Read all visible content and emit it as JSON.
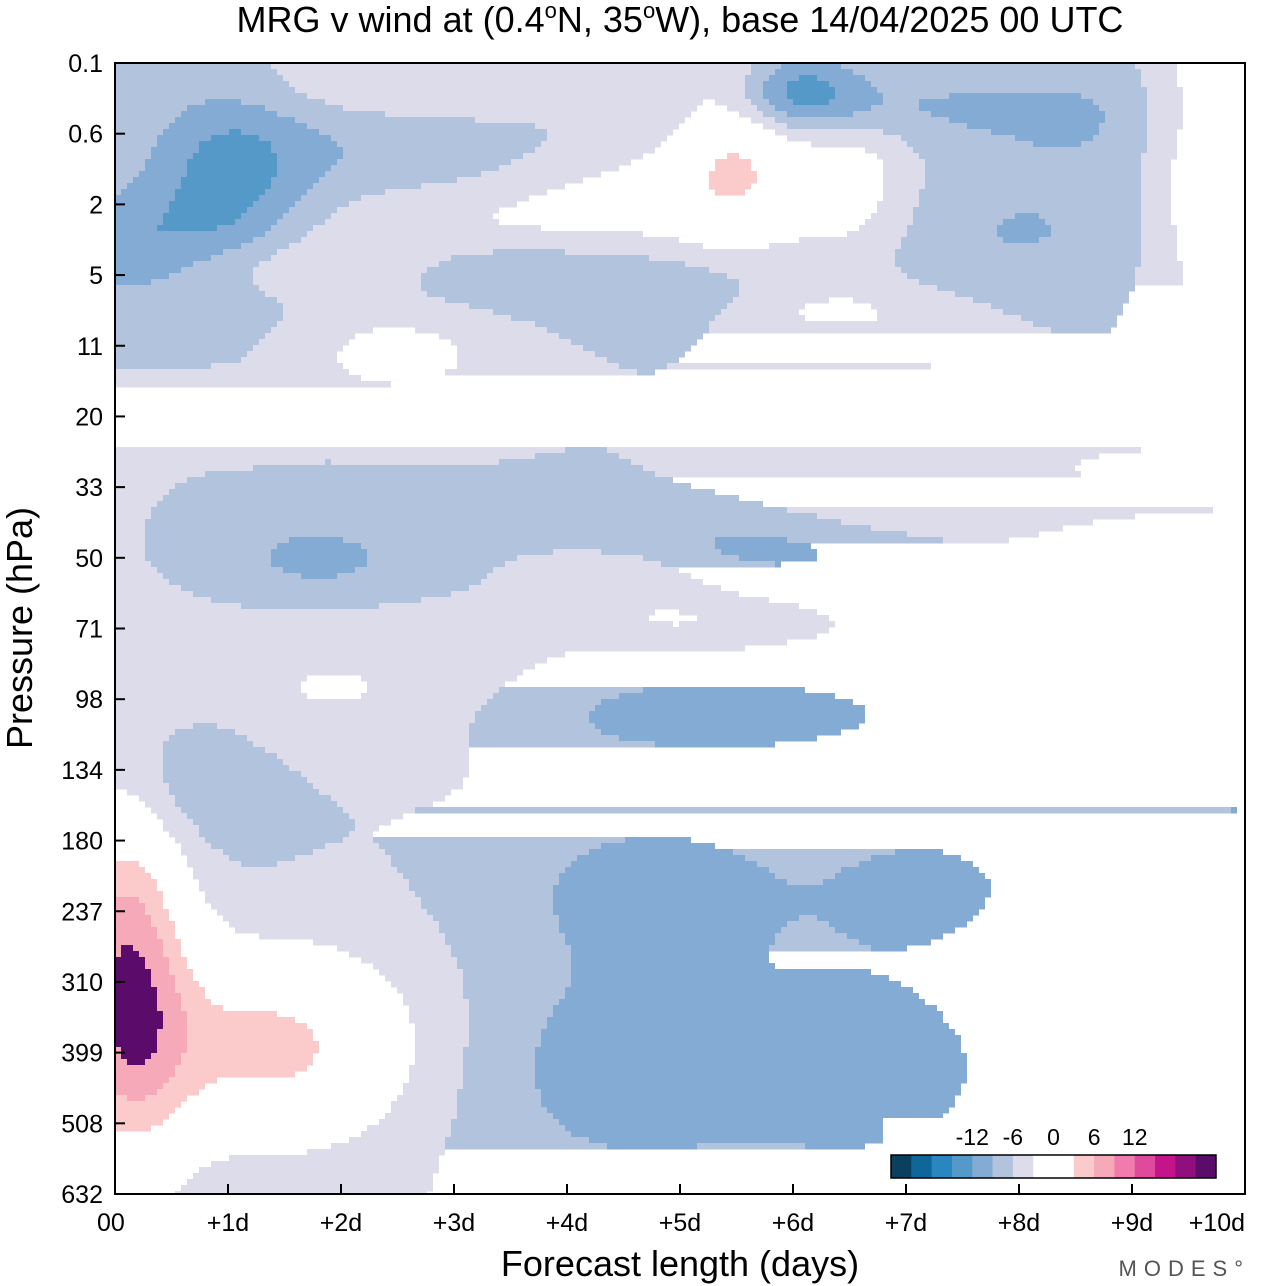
{
  "chart_data": {
    "type": "heatmap",
    "title": "MRG v wind at (0.4°N, 35°W),  base 14/04/2025  00 UTC",
    "title_parts": {
      "prefix": "MRG v wind at (0.4",
      "deg1": "o",
      "mid": "N, 35",
      "deg2": "o",
      "suffix": "W),  base 14/04/2025  00 UTC"
    },
    "xlabel": "Forecast length (days)",
    "ylabel": "Pressure (hPa)",
    "x_ticks": [
      "00",
      "+1d",
      "+2d",
      "+3d",
      "+4d",
      "+5d",
      "+6d",
      "+7d",
      "+8d",
      "+9d",
      "+10d"
    ],
    "y_ticks": [
      "0.1",
      "0.6",
      "2",
      "5",
      "11",
      "20",
      "33",
      "50",
      "71",
      "98",
      "134",
      "180",
      "237",
      "310",
      "399",
      "508",
      "632"
    ],
    "xlim": [
      0,
      10
    ],
    "ylim": [
      0.1,
      632
    ],
    "colorbar": {
      "tick_labels": [
        "-12",
        "-6",
        "0",
        "6",
        "12"
      ],
      "levels": [
        -15,
        -12,
        -9,
        -6,
        -3,
        0,
        3,
        6,
        9,
        12,
        15
      ],
      "colors": [
        "#0a3f5f",
        "#0f6699",
        "#2a86be",
        "#5599c9",
        "#84abd4",
        "#b2c3dd",
        "#dcdcea",
        "#ffffff",
        "#ffffff",
        "#fbcaca",
        "#f6a9b8",
        "#f07bac",
        "#e04a9c",
        "#c5138c",
        "#8e0f7d",
        "#5b0c6b"
      ]
    },
    "anomalies": [
      {
        "day": 0.1,
        "p": 300,
        "v": 14,
        "sd": 0.4,
        "sp": 0.9
      },
      {
        "day": 1.4,
        "p": 390,
        "v": 10,
        "sd": 0.9,
        "sp": 0.45
      },
      {
        "day": 4.5,
        "p": 420,
        "v": -4.5,
        "sd": 1.0,
        "sp": 0.55
      },
      {
        "day": 6.7,
        "p": 420,
        "v": -4.5,
        "sd": 0.9,
        "sp": 0.5
      },
      {
        "day": 4.8,
        "p": 215,
        "v": -4.3,
        "sd": 0.9,
        "sp": 0.35
      },
      {
        "day": 7.2,
        "p": 215,
        "v": -3.8,
        "sd": 0.7,
        "sp": 0.3
      },
      {
        "day": 9.9,
        "p": 160,
        "v": -3,
        "sd": 0.5,
        "sp": 0.8
      },
      {
        "day": 0.5,
        "p": 140,
        "v": -4,
        "sd": 0.6,
        "sp": 0.35
      },
      {
        "day": 2.0,
        "p": 95,
        "v": 3.5,
        "sd": 1.1,
        "sp": 0.3
      },
      {
        "day": 5.3,
        "p": 105,
        "v": -4.5,
        "sd": 1.5,
        "sp": 0.22
      },
      {
        "day": 1.8,
        "p": 50,
        "v": -4,
        "sd": 0.6,
        "sp": 0.18
      },
      {
        "day": 5.8,
        "p": 46,
        "v": -4,
        "sd": 1.0,
        "sp": 0.2
      },
      {
        "day": 9.3,
        "p": 48,
        "v": -3,
        "sd": 0.8,
        "sp": 0.15
      },
      {
        "day": 7.0,
        "p": 37,
        "v": 3.5,
        "sd": 1.1,
        "sp": 0.16
      },
      {
        "day": 9.0,
        "p": 28,
        "v": 3.2,
        "sd": 0.8,
        "sp": 0.15
      },
      {
        "day": 5.0,
        "p": 68,
        "v": 3.2,
        "sd": 0.6,
        "sp": 0.12
      },
      {
        "day": 4.5,
        "p": 55,
        "v": 3.2,
        "sd": 0.5,
        "sp": 0.12
      },
      {
        "day": 2.5,
        "p": 12,
        "v": 4.5,
        "sd": 0.6,
        "sp": 0.2
      },
      {
        "day": 0.7,
        "p": 19,
        "v": 3,
        "sd": 0.5,
        "sp": 0.12
      },
      {
        "day": 7.3,
        "p": 13,
        "v": 3,
        "sd": 0.7,
        "sp": 0.12
      },
      {
        "day": 1.5,
        "p": 4.5,
        "v": 3.5,
        "sd": 0.9,
        "sp": 0.15
      },
      {
        "day": 3.5,
        "p": 4.8,
        "v": -3,
        "sd": 0.8,
        "sp": 0.15
      },
      {
        "day": 5.0,
        "p": 6.5,
        "v": -3.5,
        "sd": 0.6,
        "sp": 0.15
      },
      {
        "day": 6.3,
        "p": 7.5,
        "v": 3.5,
        "sd": 0.9,
        "sp": 0.13
      },
      {
        "day": 3.5,
        "p": 2.5,
        "v": 3,
        "sd": 1.3,
        "sp": 0.18
      },
      {
        "day": 1.0,
        "p": 1.5,
        "v": -7,
        "sd": 0.5,
        "sp": 0.45
      },
      {
        "day": 0.1,
        "p": 3.5,
        "v": -5,
        "sd": 0.5,
        "sp": 0.25
      },
      {
        "day": 2.3,
        "p": 0.6,
        "v": -3.5,
        "sd": 1.0,
        "sp": 0.25
      },
      {
        "day": 5.5,
        "p": 0.7,
        "v": 8,
        "sd": 0.4,
        "sp": 0.45
      },
      {
        "day": 6.0,
        "p": 0.2,
        "v": -8,
        "sd": 0.4,
        "sp": 0.18
      },
      {
        "day": 6.5,
        "p": 1.4,
        "v": 5,
        "sd": 0.4,
        "sp": 0.35
      },
      {
        "day": 2.5,
        "p": 0.2,
        "v": 4,
        "sd": 1.0,
        "sp": 0.22
      },
      {
        "day": 9.5,
        "p": 0.8,
        "v": 5,
        "sd": 0.3,
        "sp": 1.0
      },
      {
        "day": 8.5,
        "p": 0.4,
        "v": -3,
        "sd": 0.9,
        "sp": 0.3
      },
      {
        "day": 8.0,
        "p": 3,
        "v": -3,
        "sd": 0.9,
        "sp": 0.3
      },
      {
        "day": 4.8,
        "p": 1.5,
        "v": 3.5,
        "sd": 0.8,
        "sp": 0.2
      },
      {
        "day": 6.5,
        "p": 0.3,
        "v": -3,
        "sd": 1.0,
        "sp": 0.15
      }
    ]
  },
  "brand": "MODES°"
}
